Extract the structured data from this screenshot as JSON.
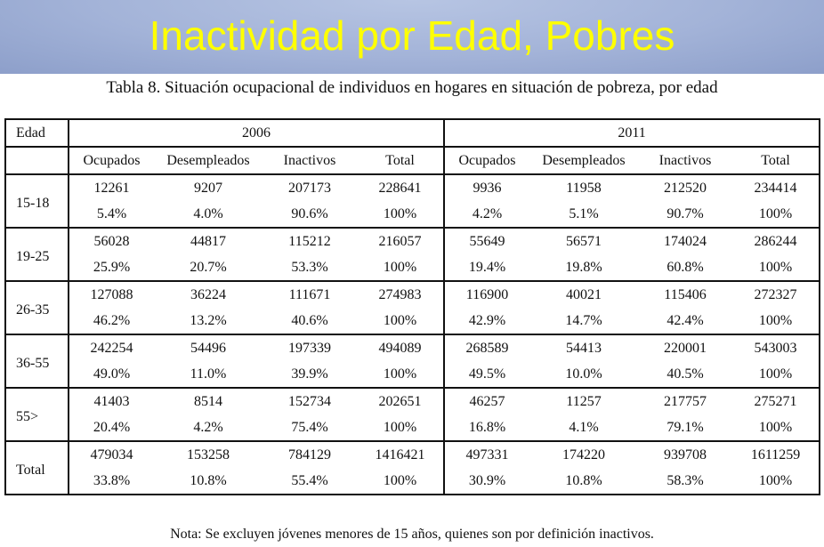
{
  "title": "Inactividad por Edad, Pobres",
  "subtitle": "Tabla 8. Situación ocupacional de individuos en hogares en situación de pobreza, por edad",
  "table": {
    "edad_header": "Edad",
    "years": [
      "2006",
      "2011"
    ],
    "columns": [
      "Ocupados",
      "Desempleados",
      "Inactivos",
      "Total"
    ],
    "rows": [
      {
        "edad": "15-18",
        "counts": [
          "12261",
          "9207",
          "207173",
          "228641",
          "9936",
          "11958",
          "212520",
          "234414"
        ],
        "pcts": [
          "5.4%",
          "4.0%",
          "90.6%",
          "100%",
          "4.2%",
          "5.1%",
          "90.7%",
          "100%"
        ]
      },
      {
        "edad": "19-25",
        "counts": [
          "56028",
          "44817",
          "115212",
          "216057",
          "55649",
          "56571",
          "174024",
          "286244"
        ],
        "pcts": [
          "25.9%",
          "20.7%",
          "53.3%",
          "100%",
          "19.4%",
          "19.8%",
          "60.8%",
          "100%"
        ]
      },
      {
        "edad": "26-35",
        "counts": [
          "127088",
          "36224",
          "111671",
          "274983",
          "116900",
          "40021",
          "115406",
          "272327"
        ],
        "pcts": [
          "46.2%",
          "13.2%",
          "40.6%",
          "100%",
          "42.9%",
          "14.7%",
          "42.4%",
          "100%"
        ]
      },
      {
        "edad": "36-55",
        "counts": [
          "242254",
          "54496",
          "197339",
          "494089",
          "268589",
          "54413",
          "220001",
          "543003"
        ],
        "pcts": [
          "49.0%",
          "11.0%",
          "39.9%",
          "100%",
          "49.5%",
          "10.0%",
          "40.5%",
          "100%"
        ]
      },
      {
        "edad": "55>",
        "counts": [
          "41403",
          "8514",
          "152734",
          "202651",
          "46257",
          "11257",
          "217757",
          "275271"
        ],
        "pcts": [
          "20.4%",
          "4.2%",
          "75.4%",
          "100%",
          "16.8%",
          "4.1%",
          "79.1%",
          "100%"
        ]
      },
      {
        "edad": "Total",
        "counts": [
          "479034",
          "153258",
          "784129",
          "1416421",
          "497331",
          "174220",
          "939708",
          "1611259"
        ],
        "pcts": [
          "33.8%",
          "10.8%",
          "55.4%",
          "100%",
          "30.9%",
          "10.8%",
          "58.3%",
          "100%"
        ]
      }
    ]
  },
  "note": "Nota: Se excluyen jóvenes menores de 15 años, quienes son por definición inactivos."
}
